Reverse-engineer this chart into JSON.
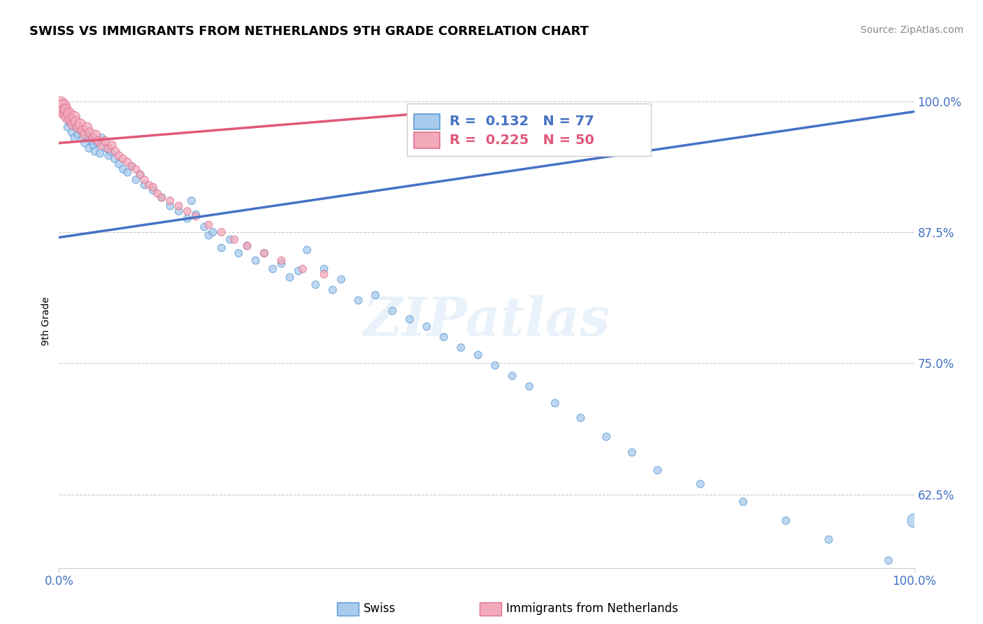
{
  "title": "SWISS VS IMMIGRANTS FROM NETHERLANDS 9TH GRADE CORRELATION CHART",
  "source": "Source: ZipAtlas.com",
  "ylabel": "9th Grade",
  "ytick_labels": [
    "100.0%",
    "87.5%",
    "75.0%",
    "62.5%"
  ],
  "ytick_values": [
    1.0,
    0.875,
    0.75,
    0.625
  ],
  "xlim": [
    0.0,
    1.0
  ],
  "ylim": [
    0.555,
    1.025
  ],
  "blue_color": "#A8CAEC",
  "pink_color": "#F2AABB",
  "blue_edge_color": "#5B9BD5",
  "pink_edge_color": "#E07090",
  "blue_line_color": "#4472C4",
  "pink_line_color": "#E05878",
  "legend_R_blue": "R =  0.132",
  "legend_N_blue": "N = 77",
  "legend_R_pink": "R =  0.225",
  "legend_N_pink": "N = 50",
  "watermark": "ZIPatlas",
  "swiss_x": [
    0.005,
    0.008,
    0.01,
    0.012,
    0.015,
    0.018,
    0.02,
    0.022,
    0.025,
    0.028,
    0.03,
    0.032,
    0.035,
    0.038,
    0.04,
    0.042,
    0.045,
    0.048,
    0.05,
    0.055,
    0.058,
    0.06,
    0.065,
    0.07,
    0.075,
    0.08,
    0.085,
    0.09,
    0.095,
    0.1,
    0.11,
    0.12,
    0.13,
    0.14,
    0.15,
    0.155,
    0.16,
    0.17,
    0.175,
    0.18,
    0.19,
    0.2,
    0.21,
    0.22,
    0.23,
    0.24,
    0.25,
    0.26,
    0.27,
    0.28,
    0.29,
    0.3,
    0.31,
    0.32,
    0.33,
    0.35,
    0.37,
    0.39,
    0.41,
    0.43,
    0.45,
    0.47,
    0.49,
    0.51,
    0.53,
    0.55,
    0.58,
    0.61,
    0.64,
    0.67,
    0.7,
    0.75,
    0.8,
    0.85,
    0.9,
    0.97,
    1.0
  ],
  "swiss_y": [
    0.99,
    0.985,
    0.975,
    0.98,
    0.97,
    0.965,
    0.975,
    0.968,
    0.972,
    0.965,
    0.96,
    0.968,
    0.955,
    0.962,
    0.958,
    0.952,
    0.96,
    0.95,
    0.965,
    0.955,
    0.948,
    0.952,
    0.945,
    0.94,
    0.935,
    0.932,
    0.938,
    0.925,
    0.93,
    0.92,
    0.915,
    0.908,
    0.9,
    0.895,
    0.888,
    0.905,
    0.892,
    0.88,
    0.872,
    0.875,
    0.86,
    0.868,
    0.855,
    0.862,
    0.848,
    0.855,
    0.84,
    0.845,
    0.832,
    0.838,
    0.858,
    0.825,
    0.84,
    0.82,
    0.83,
    0.81,
    0.815,
    0.8,
    0.792,
    0.785,
    0.775,
    0.765,
    0.758,
    0.748,
    0.738,
    0.728,
    0.712,
    0.698,
    0.68,
    0.665,
    0.648,
    0.635,
    0.618,
    0.6,
    0.582,
    0.562,
    0.6
  ],
  "swiss_sizes": [
    60,
    60,
    60,
    60,
    60,
    60,
    60,
    60,
    60,
    60,
    60,
    60,
    60,
    60,
    60,
    60,
    60,
    60,
    60,
    60,
    60,
    60,
    60,
    60,
    60,
    60,
    60,
    60,
    60,
    60,
    60,
    60,
    60,
    60,
    60,
    60,
    60,
    60,
    60,
    60,
    60,
    60,
    60,
    60,
    60,
    60,
    60,
    60,
    60,
    60,
    60,
    60,
    60,
    60,
    60,
    60,
    60,
    60,
    60,
    60,
    60,
    60,
    60,
    60,
    60,
    60,
    60,
    60,
    60,
    60,
    60,
    60,
    60,
    60,
    60,
    60,
    200
  ],
  "nl_x": [
    0.002,
    0.003,
    0.004,
    0.005,
    0.006,
    0.007,
    0.008,
    0.01,
    0.012,
    0.014,
    0.016,
    0.018,
    0.02,
    0.022,
    0.025,
    0.028,
    0.03,
    0.033,
    0.036,
    0.04,
    0.043,
    0.046,
    0.05,
    0.054,
    0.058,
    0.062,
    0.066,
    0.07,
    0.075,
    0.08,
    0.085,
    0.09,
    0.095,
    0.1,
    0.105,
    0.11,
    0.115,
    0.12,
    0.13,
    0.14,
    0.15,
    0.16,
    0.175,
    0.19,
    0.205,
    0.22,
    0.24,
    0.26,
    0.285,
    0.31
  ],
  "nl_y": [
    0.998,
    0.995,
    0.992,
    0.995,
    0.99,
    0.988,
    0.992,
    0.985,
    0.988,
    0.982,
    0.978,
    0.985,
    0.98,
    0.975,
    0.978,
    0.972,
    0.968,
    0.975,
    0.97,
    0.965,
    0.968,
    0.962,
    0.958,
    0.962,
    0.955,
    0.958,
    0.952,
    0.948,
    0.945,
    0.942,
    0.938,
    0.935,
    0.93,
    0.925,
    0.92,
    0.918,
    0.912,
    0.908,
    0.905,
    0.9,
    0.895,
    0.89,
    0.882,
    0.875,
    0.868,
    0.862,
    0.855,
    0.848,
    0.84,
    0.835
  ],
  "nl_sizes": [
    180,
    160,
    140,
    200,
    180,
    150,
    130,
    160,
    140,
    120,
    110,
    130,
    120,
    100,
    120,
    100,
    90,
    100,
    90,
    85,
    90,
    80,
    80,
    80,
    75,
    75,
    70,
    70,
    65,
    65,
    60,
    60,
    60,
    60,
    60,
    60,
    60,
    60,
    60,
    60,
    60,
    60,
    60,
    60,
    60,
    60,
    60,
    60,
    60,
    60
  ],
  "blue_trendline_x": [
    0.0,
    1.0
  ],
  "blue_trendline_y": [
    0.87,
    0.99
  ],
  "pink_trendline_x": [
    0.0,
    0.45
  ],
  "pink_trendline_y": [
    0.96,
    0.99
  ]
}
